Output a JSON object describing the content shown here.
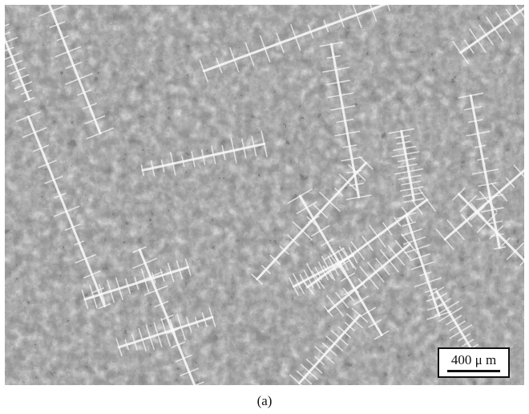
{
  "image": {
    "subject": "dendritic-microstructure-micrograph",
    "tone": "grayscale",
    "colors": {
      "dark": "#161616",
      "mid": "#8c8c8c",
      "light": "#e6e6e6",
      "highlight": "#fafafa",
      "background": "#ffffff"
    }
  },
  "scale_bar": {
    "label": "400 μ m"
  },
  "caption": {
    "text": "(a)"
  }
}
